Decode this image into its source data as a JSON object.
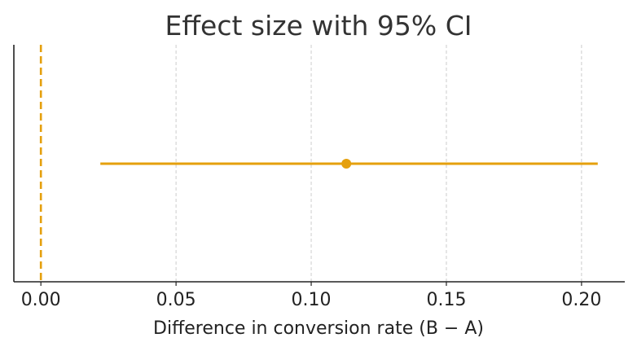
{
  "chart_data": {
    "type": "errorbar",
    "title": "Effect size with 95% CI",
    "xlabel": "Difference in conversion rate (B − A)",
    "ylabel": "",
    "xlim": [
      -0.01,
      0.216
    ],
    "xticks": [
      0.0,
      0.05,
      0.1,
      0.15,
      0.2
    ],
    "xtick_labels": [
      "0.00",
      "0.05",
      "0.10",
      "0.15",
      "0.20"
    ],
    "grid": {
      "x": true,
      "y": false,
      "style": "dashed"
    },
    "reference_line": {
      "x": 0.0,
      "style": "dashed"
    },
    "estimate": {
      "point": 0.113,
      "ci_low": 0.022,
      "ci_high": 0.206
    },
    "colors": {
      "accent": "#E5A00D",
      "grid": "#cccccc",
      "axis": "#222222",
      "title": "#333333"
    }
  }
}
